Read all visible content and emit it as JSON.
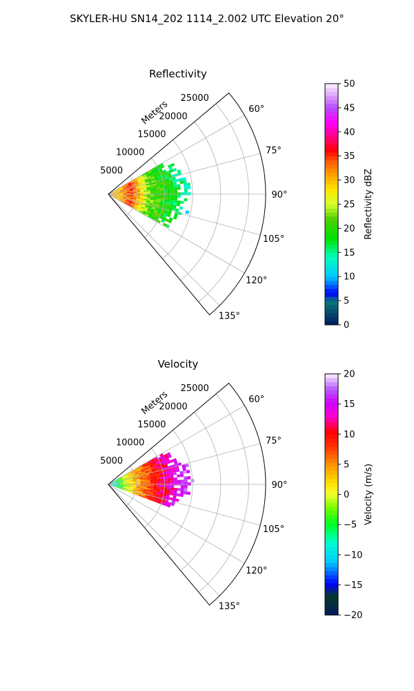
{
  "suptitle": "SKYLER-HU  SN14_202  1114_2.002 UTC Elevation 20°",
  "chart_data": [
    {
      "type": "heatmap",
      "subtype": "polar-sector-ppi",
      "title": "Reflectivity",
      "range_label": "Meters",
      "range_ticks": [
        5000,
        10000,
        15000,
        20000,
        25000
      ],
      "range_tick_labels": [
        "5000",
        "10000",
        "15000",
        "20000",
        "25000"
      ],
      "rmax": 28000,
      "azimuth_range_deg": [
        50,
        140
      ],
      "azimuth_ticks": [
        60,
        75,
        90,
        105,
        120,
        135
      ],
      "azimuth_tick_labels": [
        "60°",
        "75°",
        "90°",
        "105°",
        "120°",
        "135°"
      ],
      "grid": true,
      "data_coverage": {
        "azimuth_deg": [
          60,
          118
        ],
        "range_m": [
          0,
          14500
        ]
      },
      "data_profile_note_values": [
        {
          "range_m": 2000,
          "value": 30
        },
        {
          "range_m": 4000,
          "value": 35
        },
        {
          "range_m": 7000,
          "value": 22
        },
        {
          "range_m": 11000,
          "value": 18
        },
        {
          "range_m": 14000,
          "value": 13
        }
      ],
      "colorbar": {
        "label": "Reflectivity dBZ",
        "vmin": 0,
        "vmax": 50,
        "ticks": [
          0,
          5,
          10,
          15,
          20,
          25,
          30,
          35,
          40,
          45,
          50
        ],
        "tick_labels": [
          "0",
          "5",
          "10",
          "15",
          "20",
          "25",
          "30",
          "35",
          "40",
          "45",
          "50"
        ],
        "colormap": "pyart_NWSRef"
      }
    },
    {
      "type": "heatmap",
      "subtype": "polar-sector-ppi",
      "title": "Velocity",
      "range_label": "Meters",
      "range_ticks": [
        5000,
        10000,
        15000,
        20000,
        25000
      ],
      "range_tick_labels": [
        "5000",
        "10000",
        "15000",
        "20000",
        "25000"
      ],
      "rmax": 28000,
      "azimuth_range_deg": [
        50,
        140
      ],
      "azimuth_ticks": [
        60,
        75,
        90,
        105,
        120,
        135
      ],
      "azimuth_tick_labels": [
        "60°",
        "75°",
        "90°",
        "105°",
        "120°",
        "135°"
      ],
      "grid": true,
      "data_coverage": {
        "azimuth_deg": [
          60,
          110
        ],
        "range_m": [
          0,
          14500
        ]
      },
      "data_profile_note_values": [
        {
          "range_m": 1000,
          "value": -8
        },
        {
          "range_m": 3000,
          "value": 0
        },
        {
          "range_m": 6000,
          "value": 6
        },
        {
          "range_m": 9000,
          "value": 11
        },
        {
          "range_m": 13000,
          "value": 16
        }
      ],
      "colorbar": {
        "label": "Velocity (m/s)",
        "vmin": -20,
        "vmax": 20,
        "ticks": [
          -20,
          -15,
          -10,
          -5,
          0,
          5,
          10,
          15,
          20
        ],
        "tick_labels": [
          "−20",
          "−15",
          "−10",
          "−5",
          "0",
          "5",
          "10",
          "15",
          "20"
        ],
        "colormap": "pyart_BuDRd18"
      }
    }
  ]
}
